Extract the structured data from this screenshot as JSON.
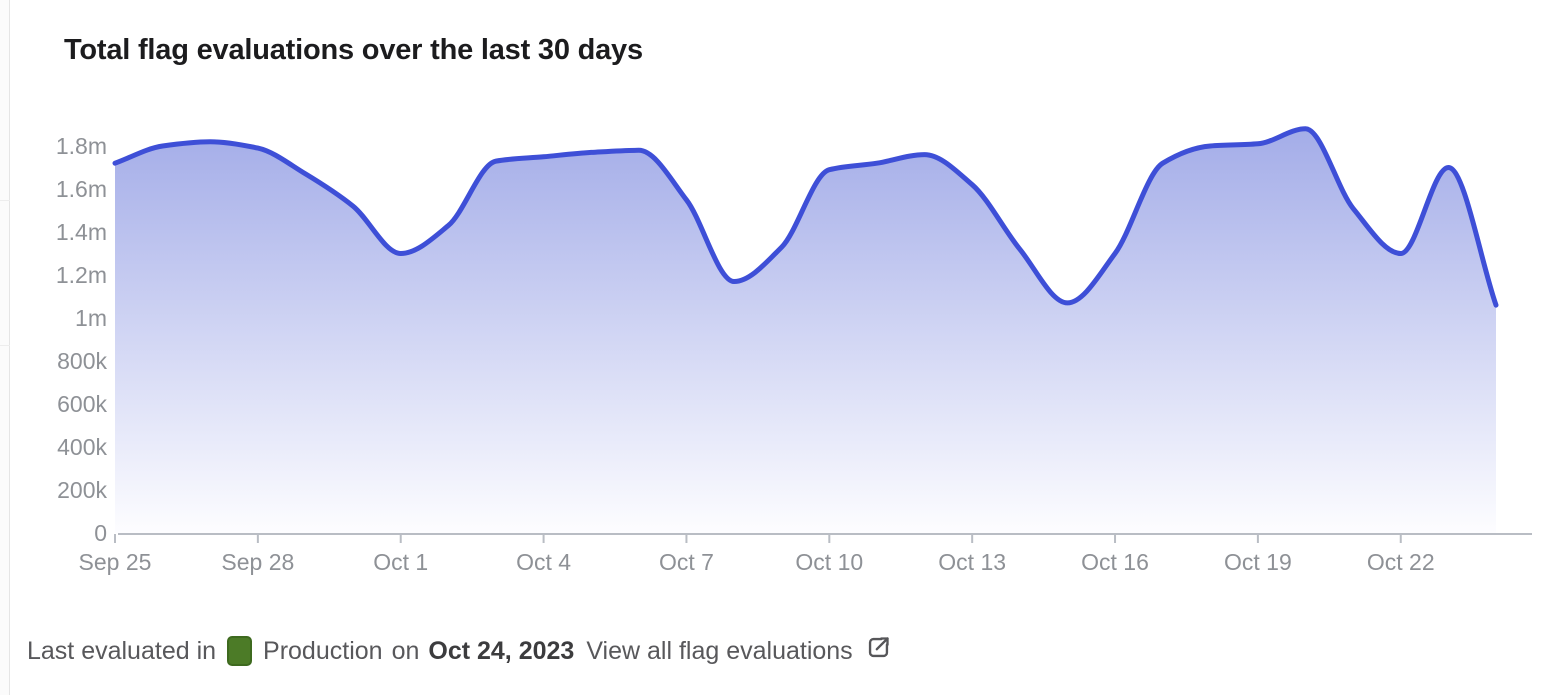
{
  "page": {
    "title": "Total flag evaluations over the last 30 days"
  },
  "chart_data": {
    "type": "area",
    "title": "Total flag evaluations over the last 30 days",
    "x": [
      "Sep 25",
      "Sep 26",
      "Sep 27",
      "Sep 28",
      "Sep 29",
      "Sep 30",
      "Oct 1",
      "Oct 2",
      "Oct 3",
      "Oct 4",
      "Oct 5",
      "Oct 6",
      "Oct 7",
      "Oct 8",
      "Oct 9",
      "Oct 10",
      "Oct 11",
      "Oct 12",
      "Oct 13",
      "Oct 14",
      "Oct 15",
      "Oct 16",
      "Oct 17",
      "Oct 18",
      "Oct 19",
      "Oct 20",
      "Oct 21",
      "Oct 22",
      "Oct 23",
      "Oct 24"
    ],
    "series": [
      {
        "name": "Total flag evaluations",
        "values": [
          1720000,
          1800000,
          1820000,
          1790000,
          1670000,
          1520000,
          1300000,
          1430000,
          1730000,
          1750000,
          1770000,
          1780000,
          1550000,
          1170000,
          1330000,
          1690000,
          1720000,
          1760000,
          1620000,
          1320000,
          1070000,
          1300000,
          1720000,
          1800000,
          1810000,
          1880000,
          1510000,
          1300000,
          1700000,
          1060000
        ]
      }
    ],
    "xlabel": "",
    "ylabel": "",
    "ylim": [
      0,
      1900000
    ],
    "y_tick_values": [
      0,
      200000,
      400000,
      600000,
      800000,
      1000000,
      1200000,
      1400000,
      1600000,
      1800000
    ],
    "y_tick_labels": [
      "0",
      "200k",
      "400k",
      "600k",
      "800k",
      "1m",
      "1.2m",
      "1.4m",
      "1.6m",
      "1.8m"
    ],
    "x_tick_indices": [
      0,
      3,
      6,
      9,
      12,
      15,
      18,
      21,
      24,
      27
    ],
    "grid": false,
    "legend": "none",
    "style": {
      "line_color": "#3e4fd7",
      "fill_top_color": "#a3ace8",
      "fill_bottom_color": "#fdfdff",
      "axis_color": "#b9bdc4",
      "tick_label_color": "#8e9196"
    }
  },
  "footer": {
    "prefix": "Last evaluated in",
    "environment": "Production",
    "connector": "on",
    "date": "Oct 24, 2023",
    "link_label": "View all flag evaluations",
    "environment_color": "#4c7b27",
    "environment_border_color": "#3e6a1f",
    "external_link_icon": "arrow-out-of-box"
  }
}
